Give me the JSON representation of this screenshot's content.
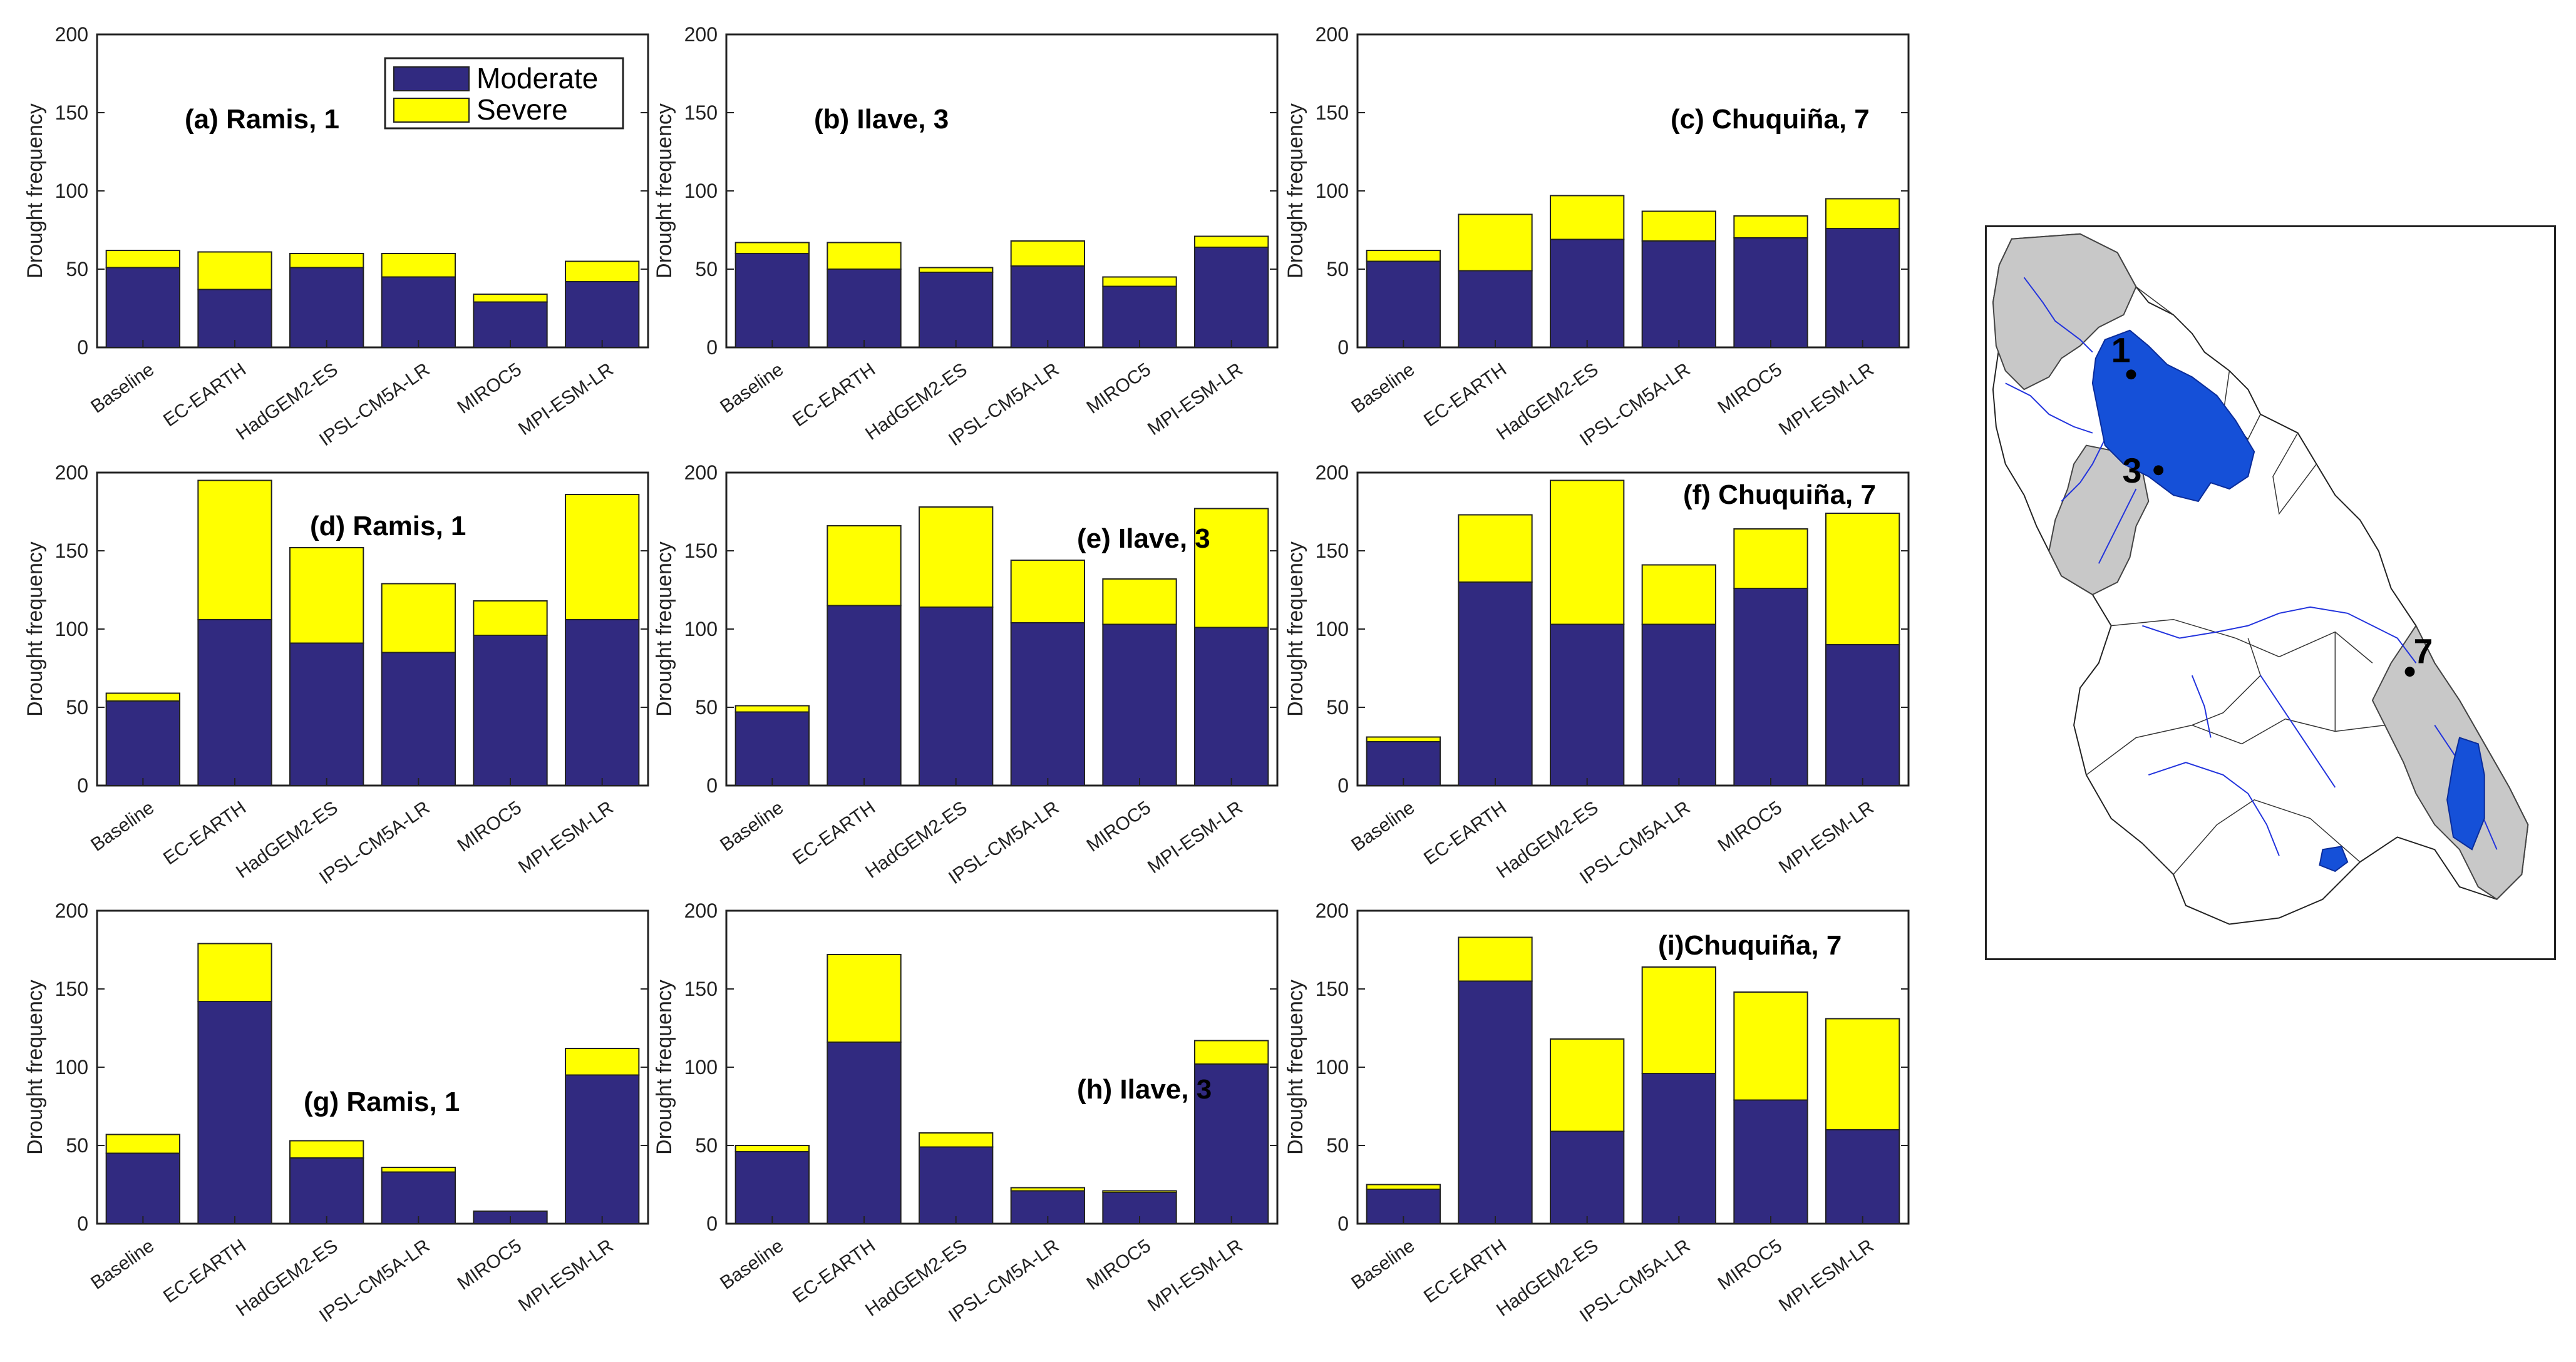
{
  "chart_data": [
    {
      "id": "a",
      "type": "bar",
      "stacked": true,
      "title": "(a)  Ramis, 1",
      "ylabel": "Drought frequency",
      "ylim": [
        0,
        200
      ],
      "yticks": [
        0,
        50,
        100,
        150,
        200
      ],
      "categories": [
        "Baseline",
        "EC-EARTH",
        "HadGEM2-ES",
        "IPSL-CM5A-LR",
        "MIROC5",
        "MPI-ESM-LR"
      ],
      "series": [
        {
          "name": "Moderate",
          "values": [
            51,
            37,
            51,
            45,
            29,
            42
          ]
        },
        {
          "name": "Severe",
          "values": [
            11,
            24,
            9,
            15,
            5,
            13
          ]
        }
      ]
    },
    {
      "id": "b",
      "type": "bar",
      "stacked": true,
      "title": "(b)  Ilave, 3",
      "ylabel": "Drought frequency",
      "ylim": [
        0,
        200
      ],
      "yticks": [
        0,
        50,
        100,
        150,
        200
      ],
      "categories": [
        "Baseline",
        "EC-EARTH",
        "HadGEM2-ES",
        "IPSL-CM5A-LR",
        "MIROC5",
        "MPI-ESM-LR"
      ],
      "series": [
        {
          "name": "Moderate",
          "values": [
            60,
            50,
            48,
            52,
            39,
            64
          ]
        },
        {
          "name": "Severe",
          "values": [
            7,
            17,
            3,
            16,
            6,
            7
          ]
        }
      ]
    },
    {
      "id": "c",
      "type": "bar",
      "stacked": true,
      "title": "(c) Chuquiña, 7",
      "ylabel": "Drought frequency",
      "ylim": [
        0,
        200
      ],
      "yticks": [
        0,
        50,
        100,
        150,
        200
      ],
      "categories": [
        "Baseline",
        "EC-EARTH",
        "HadGEM2-ES",
        "IPSL-CM5A-LR",
        "MIROC5",
        "MPI-ESM-LR"
      ],
      "series": [
        {
          "name": "Moderate",
          "values": [
            55,
            49,
            69,
            68,
            70,
            76
          ]
        },
        {
          "name": "Severe",
          "values": [
            7,
            36,
            28,
            19,
            14,
            19
          ]
        }
      ]
    },
    {
      "id": "d",
      "type": "bar",
      "stacked": true,
      "title": "(d)  Ramis, 1",
      "ylabel": "Drought frequency",
      "ylim": [
        0,
        200
      ],
      "yticks": [
        0,
        50,
        100,
        150,
        200
      ],
      "categories": [
        "Baseline",
        "EC-EARTH",
        "HadGEM2-ES",
        "IPSL-CM5A-LR",
        "MIROC5",
        "MPI-ESM-LR"
      ],
      "series": [
        {
          "name": "Moderate",
          "values": [
            54,
            106,
            91,
            85,
            96,
            106
          ]
        },
        {
          "name": "Severe",
          "values": [
            5,
            89,
            61,
            44,
            22,
            80
          ]
        }
      ]
    },
    {
      "id": "e",
      "type": "bar",
      "stacked": true,
      "title": "(e)  Ilave, 3",
      "ylabel": "Drought frequency",
      "ylim": [
        0,
        200
      ],
      "yticks": [
        0,
        50,
        100,
        150,
        200
      ],
      "categories": [
        "Baseline",
        "EC-EARTH",
        "HadGEM2-ES",
        "IPSL-CM5A-LR",
        "MIROC5",
        "MPI-ESM-LR"
      ],
      "series": [
        {
          "name": "Moderate",
          "values": [
            47,
            115,
            114,
            104,
            103,
            101
          ]
        },
        {
          "name": "Severe",
          "values": [
            4,
            51,
            64,
            40,
            29,
            76
          ]
        }
      ]
    },
    {
      "id": "f",
      "type": "bar",
      "stacked": true,
      "title": "(f) Chuquiña, 7",
      "ylabel": "Drought frequency",
      "ylim": [
        0,
        200
      ],
      "yticks": [
        0,
        50,
        100,
        150,
        200
      ],
      "categories": [
        "Baseline",
        "EC-EARTH",
        "HadGEM2-ES",
        "IPSL-CM5A-LR",
        "MIROC5",
        "MPI-ESM-LR"
      ],
      "series": [
        {
          "name": "Moderate",
          "values": [
            28,
            130,
            103,
            103,
            126,
            90
          ]
        },
        {
          "name": "Severe",
          "values": [
            3,
            43,
            92,
            38,
            38,
            84
          ]
        }
      ]
    },
    {
      "id": "g",
      "type": "bar",
      "stacked": true,
      "title": "(g)  Ramis, 1",
      "ylabel": "Drought frequency",
      "ylim": [
        0,
        200
      ],
      "yticks": [
        0,
        50,
        100,
        150,
        200
      ],
      "categories": [
        "Baseline",
        "EC-EARTH",
        "HadGEM2-ES",
        "IPSL-CM5A-LR",
        "MIROC5",
        "MPI-ESM-LR"
      ],
      "series": [
        {
          "name": "Moderate",
          "values": [
            45,
            142,
            42,
            33,
            8,
            95
          ]
        },
        {
          "name": "Severe",
          "values": [
            12,
            37,
            11,
            3,
            0,
            17
          ]
        }
      ]
    },
    {
      "id": "h",
      "type": "bar",
      "stacked": true,
      "title": "(h)  Ilave, 3",
      "ylabel": "Drought frequency",
      "ylim": [
        0,
        200
      ],
      "yticks": [
        0,
        50,
        100,
        150,
        200
      ],
      "categories": [
        "Baseline",
        "EC-EARTH",
        "HadGEM2-ES",
        "IPSL-CM5A-LR",
        "MIROC5",
        "MPI-ESM-LR"
      ],
      "series": [
        {
          "name": "Moderate",
          "values": [
            46,
            116,
            49,
            21,
            20,
            102
          ]
        },
        {
          "name": "Severe",
          "values": [
            4,
            56,
            9,
            2,
            1,
            15
          ]
        }
      ]
    },
    {
      "id": "i",
      "type": "bar",
      "stacked": true,
      "title": "(i)Chuquiña, 7",
      "ylabel": "Drought frequency",
      "ylim": [
        0,
        200
      ],
      "yticks": [
        0,
        50,
        100,
        150,
        200
      ],
      "categories": [
        "Baseline",
        "EC-EARTH",
        "HadGEM2-ES",
        "IPSL-CM5A-LR",
        "MIROC5",
        "MPI-ESM-LR"
      ],
      "series": [
        {
          "name": "Moderate",
          "values": [
            22,
            155,
            59,
            96,
            79,
            60
          ]
        },
        {
          "name": "Severe",
          "values": [
            3,
            28,
            59,
            68,
            69,
            71
          ]
        }
      ]
    }
  ],
  "legend": {
    "items": [
      {
        "label": "Moderate",
        "color": "#312A80"
      },
      {
        "label": "Severe",
        "color": "#FFFF00"
      }
    ]
  },
  "colors": {
    "moderate": "#312A80",
    "severe": "#FFFF00",
    "lake": "#1550D8",
    "river": "#2233DD",
    "grey_basin": "#C8C8C8"
  },
  "map": {
    "station_labels": [
      "1",
      "3",
      "7"
    ]
  }
}
